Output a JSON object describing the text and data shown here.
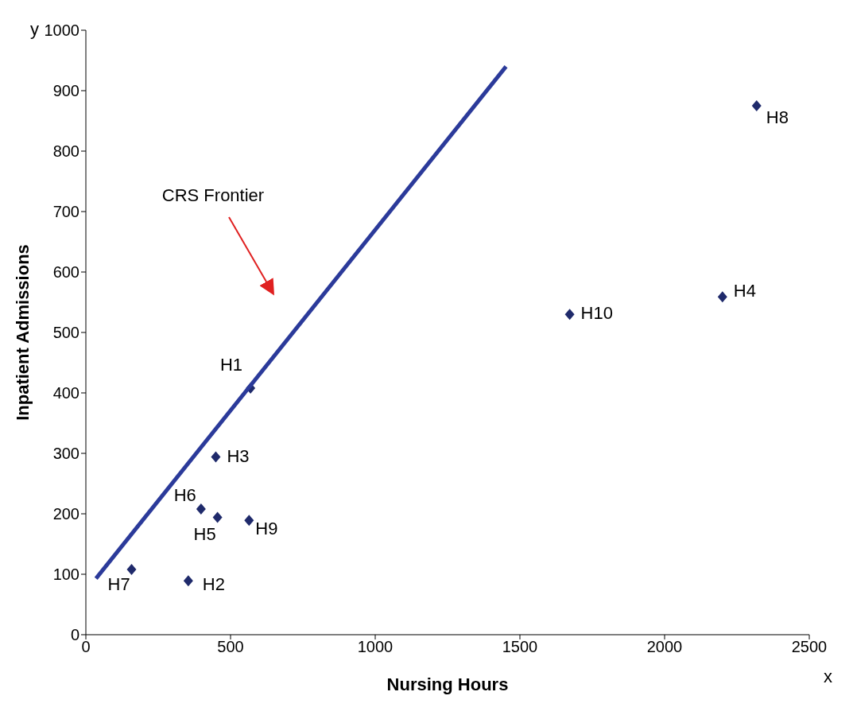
{
  "chart_data": {
    "type": "scatter",
    "xlabel": "Nursing Hours",
    "ylabel": "Inpatient Admissions",
    "grid": false,
    "xlim": [
      0,
      2500
    ],
    "xticks": [
      0,
      500,
      1000,
      1500,
      2000,
      2500
    ],
    "ylim": [
      0,
      1000
    ],
    "yticks": [
      0,
      100,
      200,
      300,
      400,
      500,
      600,
      700,
      800,
      900,
      1000
    ],
    "series": [
      {
        "marker": "diamond",
        "color": "#1f2a6b",
        "x": [
          569,
          354,
          449,
          2200,
          455,
          398,
          158,
          2318,
          564,
          1672
        ],
        "values": [
          408,
          89,
          294,
          559,
          194,
          208,
          108,
          875,
          189,
          530
        ],
        "value_labels": [
          "H1",
          "H2",
          "H3",
          "H4",
          "H5",
          "H6",
          "H7",
          "H8",
          "H9",
          "H10"
        ]
      },
      {
        "type": "line",
        "color": "#2b3a9a",
        "x": [
          35,
          1452
        ],
        "values": [
          93,
          940
        ]
      }
    ],
    "annotations": [
      "CRS Frontier",
      "y",
      "x"
    ]
  }
}
